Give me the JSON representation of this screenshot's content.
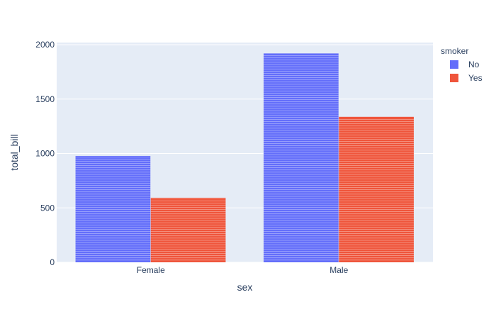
{
  "chart_data": {
    "type": "bar",
    "barmode": "group",
    "categories": [
      "Female",
      "Male"
    ],
    "series": [
      {
        "name": "No",
        "values": [
          977.68,
          1919.75
        ],
        "color": "#636efa"
      },
      {
        "name": "Yes",
        "values": [
          593.27,
          1337.07
        ],
        "color": "#ef553b"
      }
    ],
    "xlabel": "sex",
    "ylabel": "total_bill",
    "legend_title": "smoker",
    "legend_position": "top-right",
    "ylim": [
      0,
      2020
    ],
    "yticks": [
      0,
      500,
      1000,
      1500,
      2000
    ],
    "grid": true,
    "plot_background": "#e5ecf6"
  }
}
